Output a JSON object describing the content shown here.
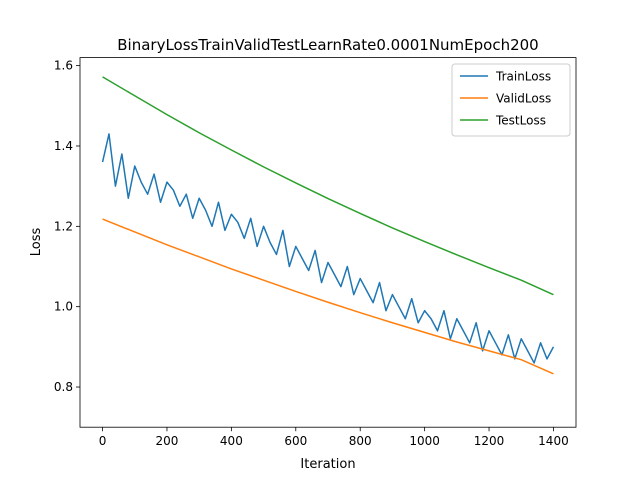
{
  "chart_data": {
    "type": "line",
    "title": "BinaryLossTrainValidTestLearnRate0.0001NumEpoch200",
    "xlabel": "Iteration",
    "ylabel": "Loss",
    "xlim": [
      -70,
      1470
    ],
    "ylim": [
      0.7,
      1.62
    ],
    "xticks": [
      0,
      200,
      400,
      600,
      800,
      1000,
      1200,
      1400
    ],
    "xtick_labels": [
      "0",
      "200",
      "400",
      "600",
      "800",
      "1000",
      "1200",
      "1400"
    ],
    "yticks": [
      0.8,
      1.0,
      1.2,
      1.4,
      1.6
    ],
    "ytick_labels": [
      "0.8",
      "1.0",
      "1.2",
      "1.4",
      "1.6"
    ],
    "grid": false,
    "legend_position": "top-right",
    "series": [
      {
        "name": "TrainLoss",
        "color": "#1f77b4",
        "x": [
          0,
          20,
          40,
          60,
          80,
          100,
          120,
          140,
          160,
          180,
          200,
          220,
          240,
          260,
          280,
          300,
          320,
          340,
          360,
          380,
          400,
          420,
          440,
          460,
          480,
          500,
          520,
          540,
          560,
          580,
          600,
          620,
          640,
          660,
          680,
          700,
          720,
          740,
          760,
          780,
          800,
          820,
          840,
          860,
          880,
          900,
          920,
          940,
          960,
          980,
          1000,
          1020,
          1040,
          1060,
          1080,
          1100,
          1120,
          1140,
          1160,
          1180,
          1200,
          1220,
          1240,
          1260,
          1280,
          1300,
          1320,
          1340,
          1360,
          1380,
          1400
        ],
        "y": [
          1.36,
          1.43,
          1.3,
          1.38,
          1.27,
          1.35,
          1.31,
          1.28,
          1.33,
          1.26,
          1.31,
          1.29,
          1.25,
          1.28,
          1.22,
          1.27,
          1.24,
          1.2,
          1.26,
          1.19,
          1.23,
          1.21,
          1.17,
          1.22,
          1.15,
          1.2,
          1.16,
          1.13,
          1.19,
          1.1,
          1.15,
          1.12,
          1.09,
          1.14,
          1.06,
          1.11,
          1.08,
          1.05,
          1.1,
          1.03,
          1.07,
          1.04,
          1.01,
          1.06,
          0.99,
          1.03,
          1.0,
          0.97,
          1.02,
          0.96,
          0.99,
          0.97,
          0.94,
          0.99,
          0.92,
          0.97,
          0.94,
          0.91,
          0.96,
          0.89,
          0.94,
          0.91,
          0.88,
          0.93,
          0.87,
          0.92,
          0.89,
          0.86,
          0.91,
          0.87,
          0.9
        ]
      },
      {
        "name": "ValidLoss",
        "color": "#ff7f0e",
        "x": [
          0,
          100,
          200,
          300,
          400,
          500,
          600,
          700,
          800,
          900,
          1000,
          1100,
          1200,
          1300,
          1400
        ],
        "y": [
          1.218,
          1.186,
          1.154,
          1.124,
          1.094,
          1.066,
          1.038,
          1.011,
          0.985,
          0.96,
          0.936,
          0.912,
          0.89,
          0.868,
          0.833
        ]
      },
      {
        "name": "TestLoss",
        "color": "#2ca02c",
        "x": [
          0,
          100,
          200,
          300,
          400,
          500,
          600,
          700,
          800,
          900,
          1000,
          1100,
          1200,
          1300,
          1400
        ],
        "y": [
          1.572,
          1.525,
          1.478,
          1.433,
          1.39,
          1.348,
          1.308,
          1.269,
          1.232,
          1.196,
          1.162,
          1.129,
          1.097,
          1.066,
          1.03
        ]
      }
    ]
  }
}
